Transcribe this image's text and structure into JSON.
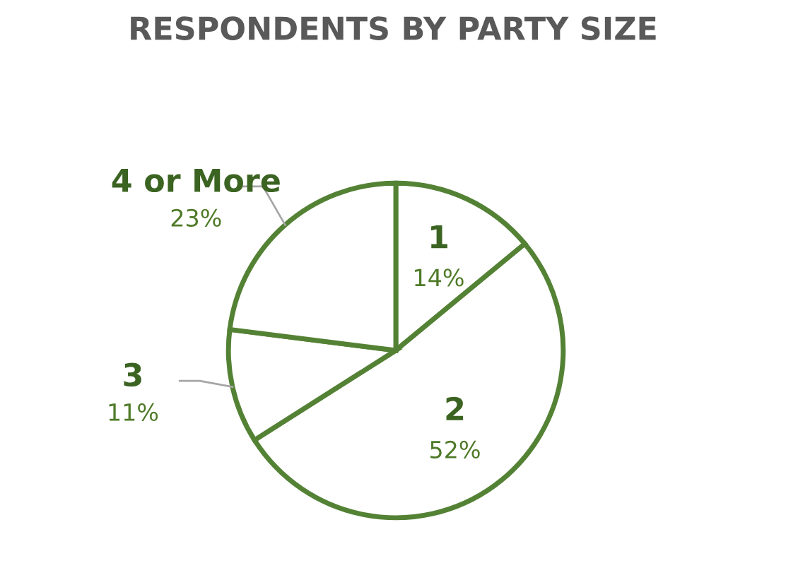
{
  "chart_data": {
    "type": "pie",
    "title": "RESPONDENTS BY PARTY SIZE",
    "categories": [
      "1",
      "2",
      "3",
      "4 or More"
    ],
    "values": [
      14,
      52,
      11,
      23
    ],
    "value_labels": [
      "14%",
      "52%",
      "11%",
      "23%"
    ],
    "colors": [
      "#ffffff",
      "#ffffff",
      "#ffffff",
      "#ffffff"
    ]
  }
}
